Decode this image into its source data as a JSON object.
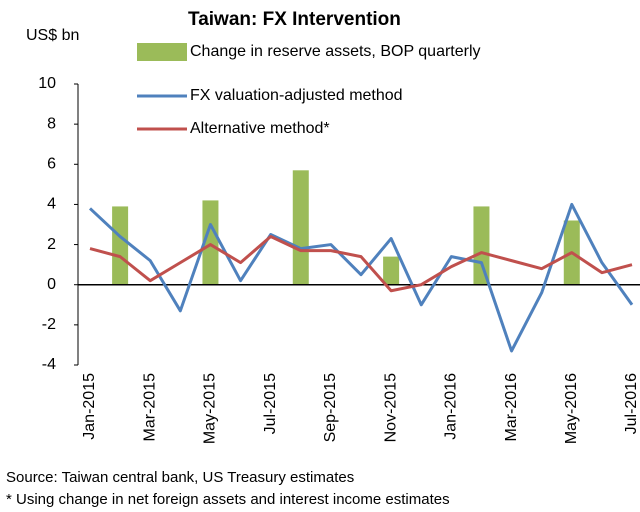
{
  "chart_data": {
    "type": "bar-line",
    "title": "Taiwan: FX Intervention",
    "y_label": "US$ bn",
    "categories": [
      "Jan-2015",
      null,
      "Mar-2015",
      null,
      "May-2015",
      null,
      "Jul-2015",
      null,
      "Sep-2015",
      null,
      "Nov-2015",
      null,
      "Jan-2016",
      null,
      "Mar-2016",
      null,
      "May-2016",
      null,
      "Jul-2016"
    ],
    "series": [
      {
        "name": "Change in reserve assets, BOP quarterly",
        "type": "bar",
        "color": "#9bbb59",
        "values": [
          null,
          3.9,
          null,
          null,
          4.2,
          null,
          null,
          5.7,
          null,
          null,
          1.4,
          null,
          null,
          3.9,
          null,
          null,
          3.2,
          null,
          null
        ]
      },
      {
        "name": "FX valuation-adjusted method",
        "type": "line",
        "color": "#4f81bd",
        "values": [
          3.8,
          2.4,
          1.2,
          -1.3,
          3.0,
          0.2,
          2.5,
          1.8,
          2.0,
          0.5,
          2.3,
          -1.0,
          1.4,
          1.1,
          -3.3,
          -0.4,
          4.0,
          1.1,
          -1.0
        ]
      },
      {
        "name": "Alternative method*",
        "type": "line",
        "color": "#c0504d",
        "values": [
          1.8,
          1.4,
          0.2,
          1.1,
          2.0,
          1.1,
          2.4,
          1.7,
          1.7,
          1.4,
          -0.3,
          0.0,
          0.9,
          1.6,
          1.2,
          0.8,
          1.6,
          0.6,
          1.0
        ]
      }
    ],
    "ylim": [
      -4,
      10
    ],
    "yticks": [
      -4,
      -2,
      0,
      2,
      4,
      6,
      8,
      10
    ],
    "notes": [
      "Source: Taiwan central bank, US Treasury estimates",
      "* Using change in net foreign assets and interest income estimates"
    ]
  }
}
